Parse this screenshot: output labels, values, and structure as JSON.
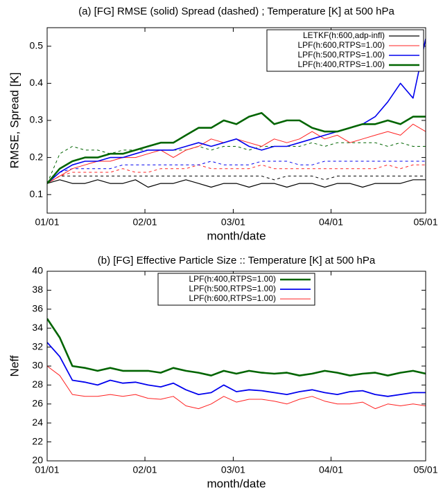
{
  "chart_data": [
    {
      "type": "line",
      "title": "(a) [FG] RMSE (solid)  Spread (dashed) ; Temperature [K] at 500 hPa",
      "xlabel": "month/date",
      "ylabel": "RMSE, Spread [K]",
      "x": [
        0,
        4,
        8,
        12,
        16,
        20,
        24,
        28,
        32,
        36,
        40,
        44,
        48,
        52,
        56,
        60,
        64,
        68,
        72,
        76,
        80,
        84,
        88,
        92,
        96,
        100,
        104,
        108,
        112,
        116,
        120
      ],
      "xlim": [
        0,
        120
      ],
      "xticks": [
        {
          "value": 0,
          "label": "01/01"
        },
        {
          "value": 31,
          "label": "02/01"
        },
        {
          "value": 59,
          "label": "03/01"
        },
        {
          "value": 90,
          "label": "04/01"
        },
        {
          "value": 120,
          "label": "05/01"
        }
      ],
      "ylim": [
        0.05,
        0.55
      ],
      "yticks": [
        0.1,
        0.2,
        0.3,
        0.4,
        0.5
      ],
      "legend": "upper right",
      "series": [
        {
          "name": "LETKF(h:600,adp-infl)",
          "color": "#000000",
          "linewidth": 1.2,
          "values": [
            0.13,
            0.14,
            0.13,
            0.13,
            0.14,
            0.13,
            0.13,
            0.14,
            0.12,
            0.13,
            0.13,
            0.14,
            0.13,
            0.12,
            0.13,
            0.13,
            0.12,
            0.13,
            0.13,
            0.12,
            0.13,
            0.13,
            0.12,
            0.13,
            0.13,
            0.12,
            0.13,
            0.13,
            0.13,
            0.14,
            0.14
          ],
          "spread": [
            0.13,
            0.15,
            0.15,
            0.15,
            0.15,
            0.15,
            0.15,
            0.15,
            0.15,
            0.15,
            0.15,
            0.15,
            0.15,
            0.15,
            0.15,
            0.15,
            0.15,
            0.15,
            0.14,
            0.15,
            0.15,
            0.15,
            0.14,
            0.15,
            0.15,
            0.15,
            0.15,
            0.15,
            0.15,
            0.15,
            0.15
          ]
        },
        {
          "name": "LPF(h:600,RTPS=1.00)",
          "color": "#ff2020",
          "linewidth": 1,
          "values": [
            0.13,
            0.15,
            0.17,
            0.18,
            0.19,
            0.19,
            0.2,
            0.2,
            0.21,
            0.22,
            0.2,
            0.22,
            0.23,
            0.25,
            0.24,
            0.25,
            0.24,
            0.23,
            0.25,
            0.24,
            0.25,
            0.27,
            0.25,
            0.26,
            0.24,
            0.25,
            0.26,
            0.27,
            0.26,
            0.29,
            0.27
          ],
          "spread": [
            0.13,
            0.15,
            0.16,
            0.16,
            0.16,
            0.16,
            0.17,
            0.16,
            0.16,
            0.17,
            0.17,
            0.17,
            0.18,
            0.17,
            0.17,
            0.17,
            0.17,
            0.18,
            0.17,
            0.17,
            0.17,
            0.17,
            0.17,
            0.17,
            0.17,
            0.17,
            0.17,
            0.18,
            0.17,
            0.18,
            0.18
          ]
        },
        {
          "name": "LPF(h:500,RTPS=1.00)",
          "color": "#0000ee",
          "linewidth": 1.6,
          "values": [
            0.13,
            0.16,
            0.18,
            0.19,
            0.19,
            0.2,
            0.2,
            0.21,
            0.22,
            0.22,
            0.22,
            0.23,
            0.24,
            0.23,
            0.24,
            0.25,
            0.23,
            0.22,
            0.23,
            0.23,
            0.24,
            0.25,
            0.26,
            0.27,
            0.28,
            0.29,
            0.31,
            0.35,
            0.4,
            0.36,
            0.52
          ],
          "spread": [
            0.13,
            0.16,
            0.17,
            0.17,
            0.17,
            0.17,
            0.18,
            0.18,
            0.18,
            0.18,
            0.18,
            0.18,
            0.18,
            0.19,
            0.18,
            0.18,
            0.18,
            0.19,
            0.19,
            0.19,
            0.18,
            0.18,
            0.19,
            0.19,
            0.19,
            0.19,
            0.19,
            0.19,
            0.19,
            0.19,
            0.19
          ]
        },
        {
          "name": "LPF(h:400,RTPS=1.00)",
          "color": "#006400",
          "linewidth": 2.6,
          "values": [
            0.13,
            0.17,
            0.19,
            0.2,
            0.2,
            0.21,
            0.21,
            0.22,
            0.23,
            0.24,
            0.24,
            0.26,
            0.28,
            0.28,
            0.3,
            0.29,
            0.31,
            0.32,
            0.29,
            0.3,
            0.3,
            0.28,
            0.27,
            0.27,
            0.28,
            0.29,
            0.29,
            0.3,
            0.29,
            0.31,
            0.31
          ],
          "spread": [
            0.13,
            0.21,
            0.23,
            0.22,
            0.22,
            0.21,
            0.22,
            0.22,
            0.22,
            0.22,
            0.22,
            0.22,
            0.23,
            0.22,
            0.23,
            0.23,
            0.22,
            0.23,
            0.23,
            0.23,
            0.23,
            0.24,
            0.23,
            0.24,
            0.24,
            0.24,
            0.24,
            0.23,
            0.24,
            0.23,
            0.23
          ]
        }
      ]
    },
    {
      "type": "line",
      "title": "(b) [FG] Effective Particle Size :: Temperature [K] at 500 hPa",
      "xlabel": "month/date",
      "ylabel": "Neff",
      "x": [
        0,
        4,
        8,
        12,
        16,
        20,
        24,
        28,
        32,
        36,
        40,
        44,
        48,
        52,
        56,
        60,
        64,
        68,
        72,
        76,
        80,
        84,
        88,
        92,
        96,
        100,
        104,
        108,
        112,
        116,
        120
      ],
      "xlim": [
        0,
        120
      ],
      "xticks": [
        {
          "value": 0,
          "label": "01/01"
        },
        {
          "value": 31,
          "label": "02/01"
        },
        {
          "value": 59,
          "label": "03/01"
        },
        {
          "value": 90,
          "label": "04/01"
        },
        {
          "value": 120,
          "label": "05/01"
        }
      ],
      "ylim": [
        20,
        40
      ],
      "yticks": [
        20,
        22,
        24,
        26,
        28,
        30,
        32,
        34,
        36,
        38,
        40
      ],
      "legend": "upper center",
      "series": [
        {
          "name": "LPF(h:400,RTPS=1.00)",
          "color": "#006400",
          "linewidth": 2.6,
          "values": [
            35,
            33,
            30,
            29.8,
            29.5,
            29.8,
            29.5,
            29.5,
            29.5,
            29.3,
            29.8,
            29.5,
            29.3,
            29,
            29.5,
            29.2,
            29.5,
            29.3,
            29.2,
            29.3,
            29,
            29.2,
            29.5,
            29.3,
            29,
            29.2,
            29.3,
            29,
            29.3,
            29.5,
            29.2
          ]
        },
        {
          "name": "LPF(h:500,RTPS=1.00)",
          "color": "#0000ee",
          "linewidth": 1.8,
          "values": [
            32.5,
            31,
            28.5,
            28.3,
            28,
            28.5,
            28.2,
            28.3,
            28,
            27.8,
            28.2,
            27.5,
            27,
            27.2,
            28,
            27.3,
            27.5,
            27.4,
            27.2,
            27,
            27.3,
            27.5,
            27.2,
            27,
            27.3,
            27.4,
            27,
            26.8,
            27,
            27.2,
            27.2
          ]
        },
        {
          "name": "LPF(h:600,RTPS=1.00)",
          "color": "#ff2020",
          "linewidth": 1,
          "values": [
            30,
            29,
            27,
            26.8,
            26.8,
            27,
            26.8,
            27,
            26.6,
            26.5,
            26.8,
            25.8,
            25.5,
            26,
            26.8,
            26.2,
            26.5,
            26.5,
            26.3,
            26,
            26.5,
            26.8,
            26.3,
            26,
            26,
            26.2,
            25.5,
            26,
            25.8,
            26,
            25.8
          ]
        }
      ]
    }
  ]
}
